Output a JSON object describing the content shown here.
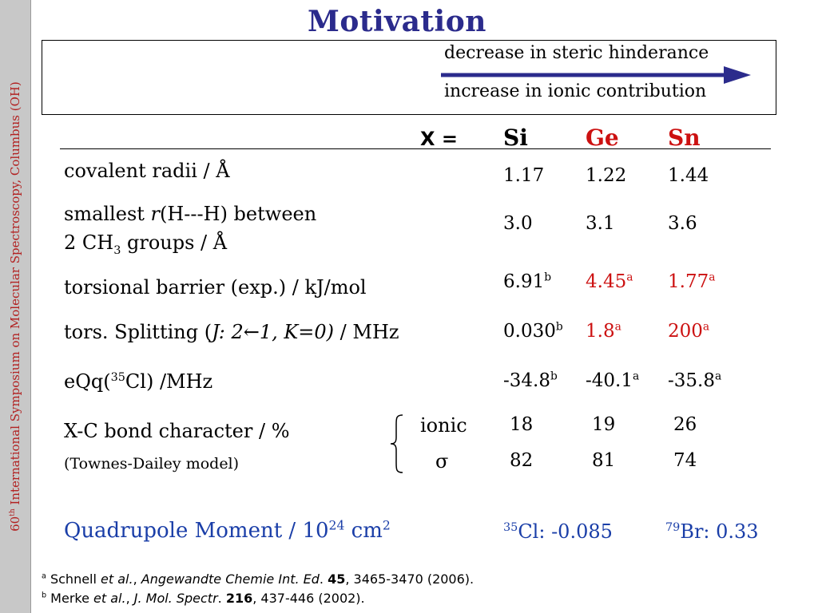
{
  "sidebar_text": "60th International Symposium on Molecular Spectroscopy, Columbus (OH)",
  "sidebar_sup": "th",
  "title": "Motivation",
  "trend": {
    "line1": "decrease in steric hinderance",
    "line2": "increase in ionic contribution"
  },
  "header": {
    "x_label": "X =",
    "si": "Si",
    "ge": "Ge",
    "sn": "Sn"
  },
  "rows": {
    "covalent": {
      "label": "covalent radii / Å",
      "si": "1.17",
      "ge": "1.22",
      "sn": "1.44"
    },
    "smallest": {
      "label_pre": "smallest ",
      "label_r": "r",
      "label_post": "(H---H) between",
      "label2_pre": "2 CH",
      "label2_sub": "3",
      "label2_post": " groups / Å",
      "si": "3.0",
      "ge": "3.1",
      "sn": "3.6"
    },
    "torsional": {
      "label": "torsional barrier (exp.) / kJ/mol",
      "si": "6.91",
      "si_sup": "b",
      "ge": "4.45",
      "ge_sup": "a",
      "sn": "1.77",
      "sn_sup": "a"
    },
    "splitting": {
      "label_pre": "tors. Splitting (",
      "label_it": "J: 2←1, K=0)",
      "label_post": " / MHz",
      "si": "0.030",
      "si_sup": "b",
      "ge": "1.8",
      "ge_sup": "a",
      "sn": "200",
      "sn_sup": "a"
    },
    "eqq": {
      "label_pre": "eQq(",
      "label_sup": "35",
      "label_post": "Cl) /MHz",
      "si": "-34.8",
      "si_sup": "b",
      "ge": "-40.1",
      "ge_sup": "a",
      "sn": "-35.8",
      "sn_sup": "a"
    },
    "bond": {
      "label": "X-C bond character / %",
      "sublabel": "(Townes-Dailey model)",
      "ionic_label": "ionic",
      "sigma_label": "σ",
      "ionic": {
        "si": "18",
        "ge": "19",
        "sn": "26"
      },
      "sigma": {
        "si": "82",
        "ge": "81",
        "sn": "74"
      }
    }
  },
  "quadrupole": {
    "label_pre": "Quadrupole Moment / 10",
    "label_exp": "24",
    "label_post": " cm",
    "label_exp2": "2",
    "cl_sup": "35",
    "cl_text": "Cl: -0.085",
    "br_sup": "79",
    "br_text": "Br: 0.33"
  },
  "footnotes": {
    "a_mark": "a",
    "a_pre": " Schnell ",
    "a_etal": "et al.",
    "a_sep": ", ",
    "a_journal": "Angewandte Chemie Int. Ed",
    "a_dot": ". ",
    "a_vol": "45",
    "a_rest": ", 3465-3470 (2006).",
    "b_mark": "b",
    "b_pre": " Merke ",
    "b_etal": "et al.",
    "b_sep": ", ",
    "b_journal": "J. Mol. Spectr",
    "b_dot": ". ",
    "b_vol": "216",
    "b_rest": ", 437-446 (2002)."
  },
  "colors": {
    "title": "#2b2b8c",
    "arrow": "#2b2b8c",
    "highlight_red": "#cc1111",
    "quadrupole_blue": "#1a3ea8",
    "sidebar_text": "#b22222"
  }
}
